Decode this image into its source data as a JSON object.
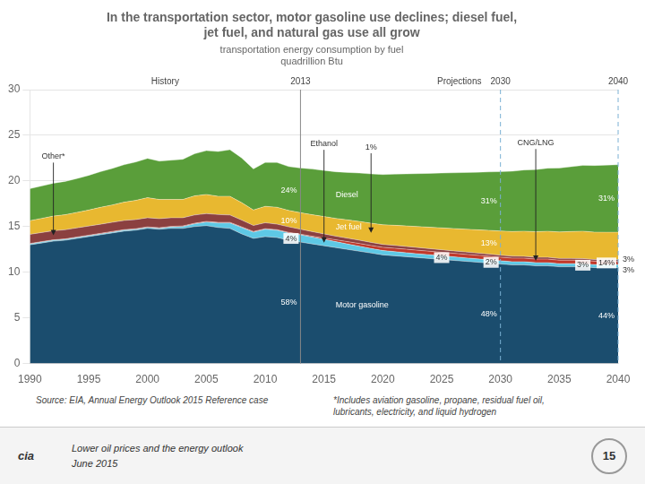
{
  "chart_data": {
    "type": "area",
    "stacked": true,
    "title": [
      "In the transportation sector, motor gasoline use declines; diesel fuel,",
      "jet fuel, and natural gas use all grow"
    ],
    "subtitle": [
      "transportation energy consumption by fuel",
      "quadrillion Btu"
    ],
    "x": [
      1990,
      1991,
      1992,
      1993,
      1994,
      1995,
      1996,
      1997,
      1998,
      1999,
      2000,
      2001,
      2002,
      2003,
      2004,
      2005,
      2006,
      2007,
      2008,
      2009,
      2010,
      2011,
      2012,
      2013,
      2014,
      2015,
      2016,
      2017,
      2018,
      2019,
      2020,
      2021,
      2022,
      2023,
      2024,
      2025,
      2026,
      2027,
      2028,
      2029,
      2030,
      2031,
      2032,
      2033,
      2034,
      2035,
      2036,
      2037,
      2038,
      2039,
      2040
    ],
    "xlim": [
      1990,
      2040
    ],
    "xticks": [
      1990,
      1995,
      2000,
      2005,
      2010,
      2015,
      2020,
      2025,
      2030,
      2035,
      2040
    ],
    "ylim": [
      0,
      30
    ],
    "yticks": [
      0,
      5,
      10,
      15,
      20,
      25,
      30
    ],
    "grid": "y",
    "series": [
      {
        "name": "Motor gasoline",
        "color": "#1b4d6e",
        "values": [
          13.0,
          13.2,
          13.4,
          13.5,
          13.7,
          13.9,
          14.1,
          14.3,
          14.5,
          14.6,
          14.8,
          14.7,
          14.8,
          14.8,
          15.0,
          15.1,
          14.9,
          14.8,
          14.2,
          13.7,
          13.9,
          13.8,
          13.5,
          13.3,
          13.1,
          12.9,
          12.7,
          12.5,
          12.3,
          12.1,
          11.9,
          11.8,
          11.7,
          11.6,
          11.5,
          11.4,
          11.3,
          11.2,
          11.1,
          11.0,
          10.9,
          10.8,
          10.8,
          10.7,
          10.7,
          10.6,
          10.6,
          10.6,
          10.5,
          10.5,
          10.5
        ]
      },
      {
        "name": "Ethanol",
        "color": "#5ec8e5",
        "values": [
          0.1,
          0.1,
          0.1,
          0.1,
          0.1,
          0.1,
          0.1,
          0.1,
          0.1,
          0.1,
          0.1,
          0.1,
          0.15,
          0.2,
          0.3,
          0.4,
          0.5,
          0.6,
          0.7,
          0.7,
          0.8,
          0.8,
          0.8,
          0.8,
          0.75,
          0.7,
          0.65,
          0.6,
          0.55,
          0.5,
          0.48,
          0.46,
          0.44,
          0.42,
          0.41,
          0.4,
          0.39,
          0.38,
          0.37,
          0.37,
          0.36,
          0.36,
          0.35,
          0.35,
          0.35,
          0.34,
          0.34,
          0.34,
          0.33,
          0.33,
          0.33
        ]
      },
      {
        "name": "CNG/LNG",
        "color": "#c0392b",
        "values": [
          0.05,
          0.05,
          0.05,
          0.05,
          0.06,
          0.06,
          0.06,
          0.07,
          0.07,
          0.07,
          0.07,
          0.07,
          0.07,
          0.07,
          0.07,
          0.07,
          0.07,
          0.07,
          0.07,
          0.07,
          0.07,
          0.07,
          0.07,
          0.07,
          0.1,
          0.15,
          0.2,
          0.25,
          0.3,
          0.33,
          0.35,
          0.37,
          0.38,
          0.39,
          0.39,
          0.39,
          0.39,
          0.39,
          0.39,
          0.39,
          0.39,
          0.39,
          0.39,
          0.39,
          0.39,
          0.38,
          0.38,
          0.38,
          0.38,
          0.38,
          0.38
        ]
      },
      {
        "name": "Other*",
        "color": "#8B4040",
        "values": [
          1.0,
          1.0,
          1.0,
          1.0,
          1.0,
          1.0,
          1.0,
          1.0,
          1.0,
          1.0,
          1.0,
          1.0,
          0.95,
          0.9,
          0.9,
          0.85,
          0.85,
          0.8,
          0.75,
          0.65,
          0.65,
          0.6,
          0.6,
          0.55,
          0.5,
          0.45,
          0.4,
          0.38,
          0.36,
          0.34,
          0.32,
          0.31,
          0.3,
          0.29,
          0.28,
          0.27,
          0.26,
          0.25,
          0.24,
          0.23,
          0.22,
          0.21,
          0.21,
          0.2,
          0.2,
          0.19,
          0.19,
          0.18,
          0.18,
          0.17,
          0.17
        ]
      },
      {
        "name": "Jet fuel",
        "color": "#e8b830",
        "values": [
          1.5,
          1.55,
          1.6,
          1.65,
          1.7,
          1.75,
          1.85,
          1.9,
          2.0,
          2.1,
          2.2,
          2.1,
          2.0,
          2.0,
          2.1,
          2.1,
          2.0,
          2.05,
          1.9,
          1.7,
          1.8,
          1.85,
          1.8,
          1.8,
          1.85,
          1.9,
          1.95,
          2.0,
          2.05,
          2.1,
          2.15,
          2.2,
          2.25,
          2.3,
          2.35,
          2.4,
          2.45,
          2.5,
          2.55,
          2.6,
          2.65,
          2.7,
          2.75,
          2.8,
          2.85,
          2.9,
          2.95,
          3.0,
          3.0,
          3.0,
          3.0
        ]
      },
      {
        "name": "Diesel",
        "color": "#5a9e3a",
        "values": [
          3.5,
          3.55,
          3.6,
          3.65,
          3.7,
          3.8,
          3.9,
          4.0,
          4.1,
          4.2,
          4.3,
          4.2,
          4.3,
          4.4,
          4.6,
          4.8,
          4.9,
          5.1,
          4.9,
          4.5,
          4.8,
          4.9,
          4.8,
          4.9,
          5.0,
          5.05,
          5.1,
          5.2,
          5.3,
          5.4,
          5.5,
          5.6,
          5.7,
          5.8,
          5.9,
          6.0,
          6.1,
          6.2,
          6.3,
          6.4,
          6.5,
          6.6,
          6.7,
          6.8,
          6.9,
          7.0,
          7.1,
          7.2,
          7.3,
          7.35,
          7.4
        ]
      }
    ],
    "reference_lines": [
      {
        "x": 2013,
        "label": "2013",
        "color": "#888888",
        "line_style": "solid"
      },
      {
        "x": 2030,
        "label": "2030",
        "color": "#7ab0d4",
        "line_style": "dashed"
      },
      {
        "x": 2040,
        "label": "2040",
        "color": "#7ab0d4",
        "line_style": "dashed"
      }
    ],
    "period_labels": [
      "History",
      "Projections"
    ],
    "annotations": [
      {
        "text": "58%",
        "series": "Motor gasoline",
        "x": 2013
      },
      {
        "text": "Motor gasoline",
        "series": "Motor gasoline",
        "x": 2016
      },
      {
        "text": "48%",
        "series": "Motor gasoline",
        "x": 2030
      },
      {
        "text": "44%",
        "series": "Motor gasoline",
        "x": 2040
      },
      {
        "text": "24%",
        "series": "Diesel",
        "x": 2013
      },
      {
        "text": "Diesel",
        "series": "Diesel",
        "x": 2016
      },
      {
        "text": "31%",
        "series": "Diesel",
        "x": 2030
      },
      {
        "text": "31%",
        "series": "Diesel",
        "x": 2040
      },
      {
        "text": "10%",
        "series": "Jet fuel",
        "x": 2013
      },
      {
        "text": "Jet fuel",
        "series": "Jet fuel",
        "x": 2016
      },
      {
        "text": "1%",
        "series": "Jet fuel",
        "x": 2019,
        "arrow": true
      },
      {
        "text": "13%",
        "series": "Jet fuel",
        "x": 2030
      },
      {
        "text": "Other*",
        "series": "Other*",
        "x": 1992,
        "arrow": true
      },
      {
        "text": "Ethanol",
        "series": "Ethanol",
        "x": 2015,
        "arrow": true
      },
      {
        "text": "4%",
        "series": "Ethanol",
        "x": 2013
      },
      {
        "text": "4%",
        "series": "Ethanol",
        "x": 2025
      },
      {
        "text": "2%",
        "series": "Ethanol",
        "x": 2030
      },
      {
        "text": "3%",
        "series": "Ethanol",
        "x": 2037
      },
      {
        "text": "CNG/LNG",
        "series": "CNG/LNG",
        "x": 2033,
        "arrow": true
      },
      {
        "text": "14%",
        "series": "CNG/LNG",
        "x": 2040
      },
      {
        "text": "3%",
        "series": "CNG/LNG",
        "x": 2040,
        "outside": true
      },
      {
        "text": "3%",
        "series": "Ethanol",
        "x": 2040,
        "outside": true
      }
    ],
    "source": "Source:  EIA, Annual Energy Outlook 2015 Reference case",
    "footnote": [
      "*Includes aviation gasoline, propane, residual fuel oil,",
      "lubricants, electricity, and liquid hydrogen"
    ],
    "footer": [
      "Lower oil prices and the energy outlook",
      "June 2015"
    ],
    "page_number": "15",
    "logo": "cia"
  }
}
